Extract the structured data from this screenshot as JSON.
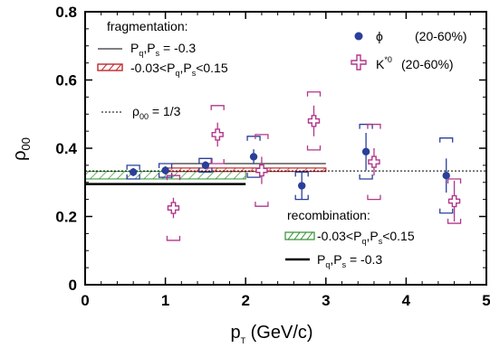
{
  "chart_data": {
    "type": "scatter",
    "title": "",
    "xlabel": {
      "base": "p",
      "sub": "T",
      "rest": " (GeV/c)"
    },
    "ylabel": {
      "base": "ρ",
      "sub": "00"
    },
    "xlim": [
      0,
      5
    ],
    "ylim": [
      0,
      0.8
    ],
    "xticks": [
      "0",
      "1",
      "2",
      "3",
      "4",
      "5"
    ],
    "yticks": [
      "0",
      "0.2",
      "0.4",
      "0.6",
      "0.8"
    ],
    "series": [
      {
        "name": "ϕ",
        "label": "(20-60%)",
        "marker": "filled-circle",
        "color": "#2a3f9a",
        "points": [
          {
            "x": 0.6,
            "y": 0.33,
            "err": 0.012,
            "sys": 0.02
          },
          {
            "x": 1.0,
            "y": 0.335,
            "err": 0.012,
            "sys": 0.02
          },
          {
            "x": 1.5,
            "y": 0.35,
            "err": 0.012,
            "sys": 0.02
          },
          {
            "x": 2.1,
            "y": 0.375,
            "err": 0.022,
            "sys": 0.06
          },
          {
            "x": 2.7,
            "y": 0.29,
            "err": 0.04,
            "sys": 0.04
          },
          {
            "x": 3.5,
            "y": 0.39,
            "err": 0.055,
            "sys": 0.08
          },
          {
            "x": 4.5,
            "y": 0.32,
            "err": 0.05,
            "sys": 0.11
          }
        ]
      },
      {
        "name": "K",
        "name_sup": "*0",
        "label": "(20-60%)",
        "marker": "open-cross",
        "color": "#b2368a",
        "points": [
          {
            "x": 1.1,
            "y": 0.225,
            "err": 0.03,
            "sys": 0.095
          },
          {
            "x": 1.65,
            "y": 0.44,
            "err": 0.035,
            "sys": 0.085
          },
          {
            "x": 2.2,
            "y": 0.335,
            "err": 0.04,
            "sys": 0.105
          },
          {
            "x": 2.85,
            "y": 0.48,
            "err": 0.045,
            "sys": 0.085
          },
          {
            "x": 3.6,
            "y": 0.36,
            "err": 0.04,
            "sys": 0.11
          },
          {
            "x": 4.6,
            "y": 0.245,
            "err": 0.06,
            "sys": 0.065
          }
        ]
      }
    ],
    "models": {
      "frag_line": {
        "x": [
          1,
          3
        ],
        "y": 0.355
      },
      "frag_band": {
        "x": [
          1,
          3
        ],
        "y": [
          0.332,
          0.342
        ]
      },
      "rho_third": {
        "x": [
          0,
          5
        ],
        "y": 0.3333
      },
      "recomb_band": {
        "x": [
          0,
          2
        ],
        "y": [
          0.31,
          0.332
        ]
      },
      "recomb_line": {
        "x": [
          0,
          2
        ],
        "y": 0.295
      }
    },
    "legend": {
      "fragmentation_title": "fragmentation:",
      "frag_line_label": "Pq,Ps = -0.3",
      "frag_band_label": "-0.03<Pq,Ps<0.15",
      "rho_label": "ρ00 = 1/3",
      "recomb_title": "recombination:",
      "recomb_band_label": "-0.03<Pq,Ps<0.15",
      "recomb_line_label": "Pq,Ps = -0.3"
    },
    "grid": false
  }
}
